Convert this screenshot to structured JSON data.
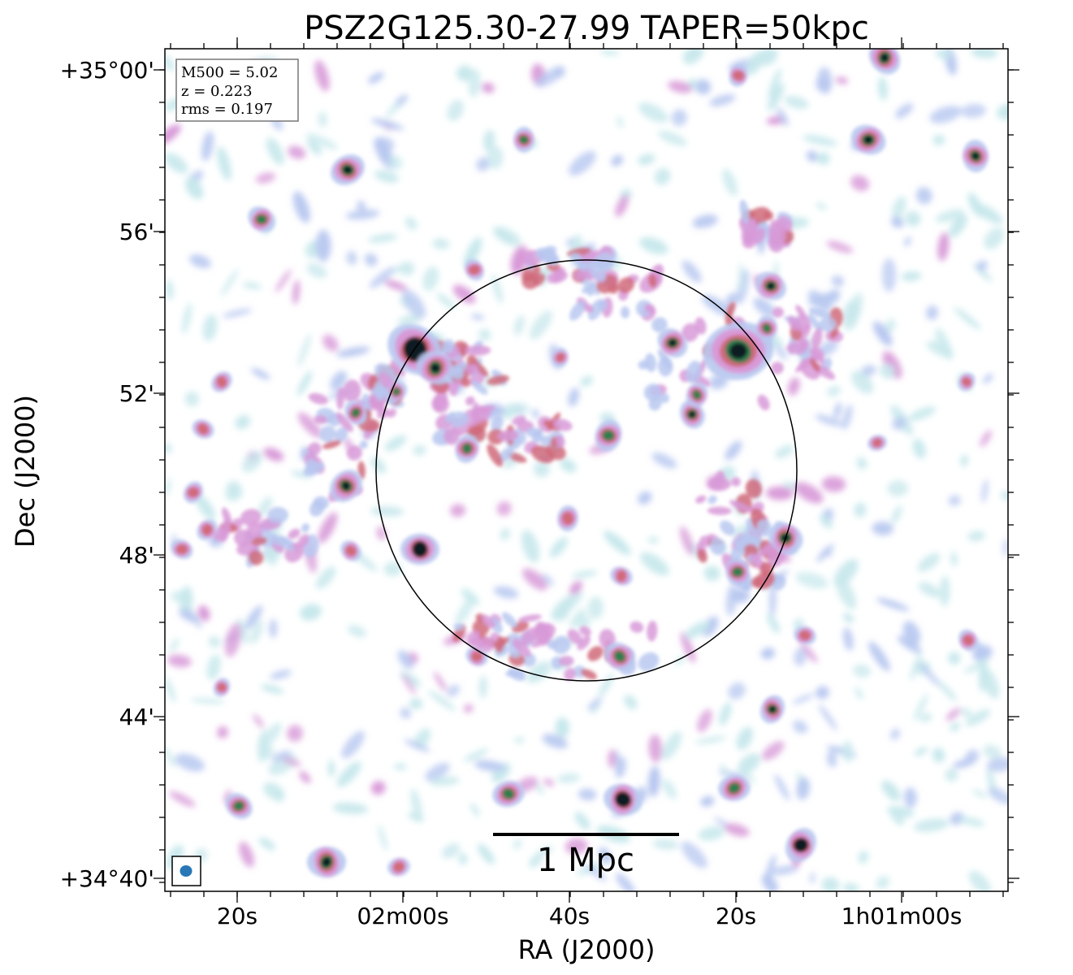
{
  "title": "PSZ2G125.30-27.99 TAPER=50kpc",
  "x_axis": {
    "label": "RA (J2000)",
    "ticks": [
      "20s",
      "02m00s",
      "40s",
      "20s",
      "1h01m00s"
    ]
  },
  "y_axis": {
    "label": "Dec (J2000)",
    "ticks": [
      "+35°00'",
      "56'",
      "52'",
      "48'",
      "44'",
      "+34°40'"
    ]
  },
  "info_box": {
    "lines": [
      "M500 = 5.02",
      "z = 0.223",
      "rms = 0.197"
    ]
  },
  "scale_bar": {
    "label": "1 Mpc"
  },
  "colors": {
    "background": "#ffffff",
    "faint_emission": "#c8e8ec",
    "low_emission": "#b8c8f0",
    "mid_emission": "#d89ad8",
    "high_emission": "#d06a7a",
    "peak_emission": "#2e7d4f",
    "core": "#0a1a20",
    "beam": "#2878b8"
  },
  "image_content": {
    "description_icons": [
      "radio-source-icon",
      "beam-ellipse-icon",
      "r500-circle-icon"
    ],
    "colormap": "cubehelix-like"
  }
}
